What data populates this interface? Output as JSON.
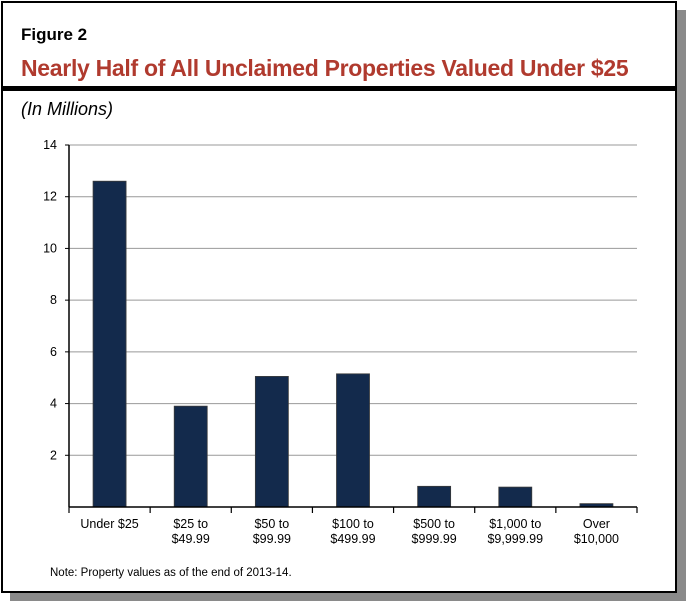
{
  "figure_label": "Figure 2",
  "title": "Nearly Half of All Unclaimed Properties Valued Under $25",
  "units": "(In Millions)",
  "note": "Note: Property values as of the end of 2013-14.",
  "colors": {
    "bar": "#132a4c",
    "title": "#b03a2e",
    "grid": "#999999"
  },
  "chart_data": {
    "type": "bar",
    "title": "Nearly Half of All Unclaimed Properties Valued Under $25",
    "ylabel": "(In Millions)",
    "xlabel": "",
    "categories": [
      [
        "Under $25"
      ],
      [
        "$25 to",
        "$49.99"
      ],
      [
        "$50 to",
        "$99.99"
      ],
      [
        "$100 to",
        "$499.99"
      ],
      [
        "$500 to",
        "$999.99"
      ],
      [
        "$1,000 to",
        "$9,999.99"
      ],
      [
        "Over",
        "$10,000"
      ]
    ],
    "values": [
      12.6,
      3.9,
      5.05,
      5.15,
      0.8,
      0.77,
      0.13
    ],
    "ylim": [
      0,
      14
    ],
    "yticks": [
      "2",
      "4",
      "6",
      "8",
      "10",
      "12",
      "14"
    ],
    "grid": true,
    "legend": "none"
  }
}
